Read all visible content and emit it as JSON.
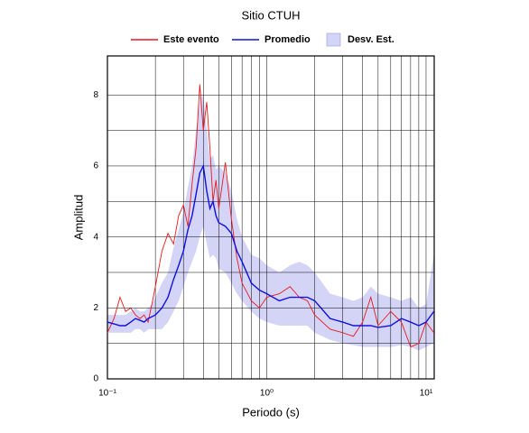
{
  "chart_data": {
    "type": "line",
    "title": "Sitio CTUH",
    "xlabel": "Periodo (s)",
    "ylabel": "Amplitud",
    "xscale": "log",
    "xlim": [
      0.1,
      11.25
    ],
    "ylim": [
      0,
      9.1
    ],
    "xticks": [
      {
        "value": 0.1,
        "label": "10⁻¹"
      },
      {
        "value": 1,
        "label": "10⁰"
      },
      {
        "value": 10,
        "label": "10¹"
      }
    ],
    "xgrid": [
      0.2,
      0.3,
      0.4,
      0.5,
      0.6,
      0.7,
      0.8,
      0.9,
      2,
      3,
      4,
      5,
      6,
      7,
      8,
      9
    ],
    "yticks": [
      0,
      2,
      4,
      6,
      8
    ],
    "yminor": [
      1,
      3,
      5,
      7
    ],
    "grid": true,
    "x": [
      0.1,
      0.11,
      0.12,
      0.13,
      0.14,
      0.15,
      0.16,
      0.17,
      0.18,
      0.19,
      0.2,
      0.22,
      0.24,
      0.26,
      0.28,
      0.3,
      0.32,
      0.34,
      0.36,
      0.38,
      0.4,
      0.42,
      0.44,
      0.46,
      0.48,
      0.5,
      0.55,
      0.6,
      0.65,
      0.7,
      0.8,
      0.9,
      1,
      1.2,
      1.4,
      1.6,
      1.8,
      2,
      2.5,
      3,
      3.5,
      4,
      4.5,
      5,
      6,
      7,
      8,
      9,
      10,
      11.2
    ],
    "band": {
      "name": "Desv. Est.",
      "color": "#d4d4f7",
      "upper": [
        1.8,
        1.8,
        1.8,
        1.8,
        1.9,
        2.0,
        1.9,
        1.9,
        2.0,
        2.1,
        2.3,
        2.7,
        3.0,
        3.7,
        4.2,
        4.7,
        5.4,
        6.0,
        7.0,
        7.8,
        8.0,
        7.0,
        6.2,
        6.3,
        5.9,
        6.0,
        5.8,
        5.3,
        4.5,
        4.0,
        3.5,
        3.4,
        3.2,
        3.0,
        3.2,
        3.3,
        3.2,
        3.0,
        2.4,
        2.3,
        2.2,
        2.3,
        2.6,
        2.4,
        2.3,
        2.2,
        2.3,
        2.0,
        2.1,
        3.5
      ],
      "lower": [
        1.3,
        1.3,
        1.3,
        1.3,
        1.3,
        1.4,
        1.4,
        1.3,
        1.4,
        1.4,
        1.4,
        1.4,
        1.6,
        1.9,
        2.2,
        2.6,
        3.0,
        3.3,
        3.6,
        4.0,
        4.3,
        3.8,
        3.4,
        3.5,
        3.4,
        3.1,
        3.0,
        2.7,
        2.4,
        2.2,
        1.9,
        1.7,
        1.6,
        1.5,
        1.5,
        1.5,
        1.5,
        1.3,
        1.1,
        1.0,
        0.95,
        0.9,
        0.9,
        0.9,
        0.9,
        0.95,
        0.9,
        0.8,
        0.9,
        1.0
      ]
    },
    "series": [
      {
        "name": "Este evento",
        "color": "#e8191c",
        "values": [
          1.3,
          1.7,
          2.3,
          1.9,
          2.0,
          1.8,
          1.7,
          1.8,
          1.6,
          2.1,
          2.6,
          3.6,
          4.1,
          3.8,
          4.6,
          4.9,
          4.3,
          5.5,
          6.5,
          8.3,
          7.0,
          7.8,
          6.5,
          5.0,
          5.6,
          4.8,
          6.1,
          4.5,
          3.4,
          2.7,
          2.2,
          2.0,
          2.3,
          2.4,
          2.6,
          2.3,
          2.2,
          1.8,
          1.4,
          1.3,
          1.2,
          1.6,
          2.3,
          1.5,
          1.9,
          1.6,
          0.9,
          1.0,
          1.6,
          1.3
        ]
      },
      {
        "name": "Promedio",
        "color": "#1010e0",
        "values": [
          1.6,
          1.55,
          1.5,
          1.5,
          1.6,
          1.7,
          1.65,
          1.6,
          1.7,
          1.75,
          1.8,
          2.0,
          2.3,
          2.8,
          3.2,
          3.6,
          4.2,
          4.6,
          5.2,
          5.8,
          6.0,
          5.3,
          4.8,
          5.0,
          4.6,
          4.4,
          4.3,
          4.1,
          3.6,
          3.3,
          2.7,
          2.5,
          2.4,
          2.2,
          2.3,
          2.3,
          2.3,
          2.2,
          1.7,
          1.6,
          1.5,
          1.5,
          1.5,
          1.45,
          1.5,
          1.7,
          1.6,
          1.5,
          1.6,
          1.9
        ]
      }
    ]
  }
}
